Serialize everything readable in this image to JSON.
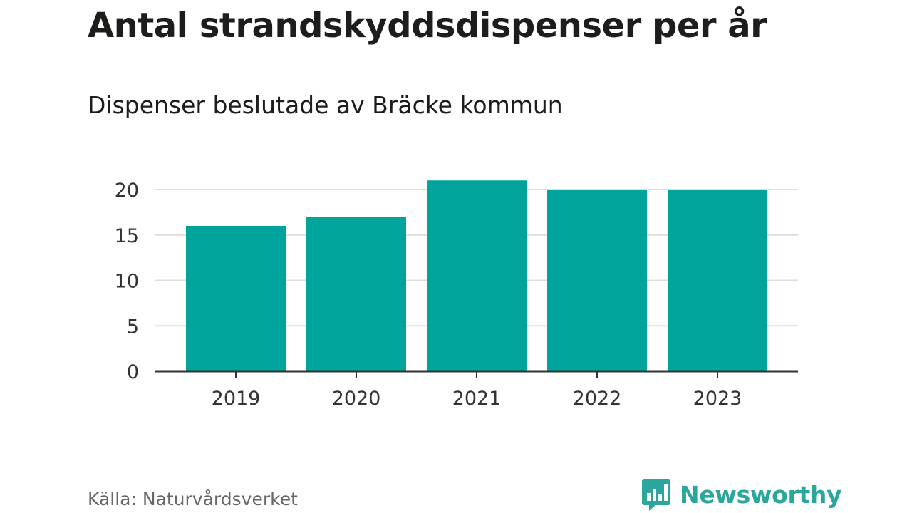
{
  "title": "Antal strandskyddsdispenser per år",
  "subtitle": "Dispenser beslutade av Bräcke kommun",
  "source": "Källa: Naturvårdsverket",
  "brand": {
    "name": "Newsworthy",
    "color": "#2aa69c",
    "icon": "newsworthy-logo-icon"
  },
  "chart_data": {
    "type": "bar",
    "title": "Antal strandskyddsdispenser per år",
    "subtitle": "Dispenser beslutade av Bräcke kommun",
    "categories": [
      "2019",
      "2020",
      "2021",
      "2022",
      "2023"
    ],
    "values": [
      16,
      17,
      21,
      20,
      20
    ],
    "xlabel": "",
    "ylabel": "",
    "ylim": [
      0,
      21
    ],
    "yticks": [
      0,
      5,
      10,
      15,
      20
    ],
    "grid": true,
    "bar_color": "#00a49a",
    "legend": "none"
  }
}
